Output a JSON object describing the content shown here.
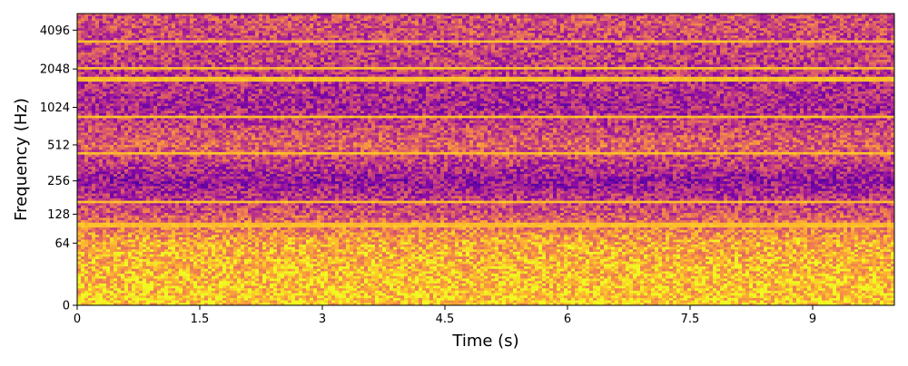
{
  "chart_data": {
    "type": "heatmap",
    "xlabel": "Time (s)",
    "ylabel": "Frequency (Hz)",
    "xlim": [
      0,
      10.0
    ],
    "x_ticks": [
      0,
      1.5,
      3,
      4.5,
      6,
      7.5,
      9
    ],
    "x_tick_labels": [
      "0",
      "1.5",
      "3",
      "4.5",
      "6",
      "7.5",
      "9"
    ],
    "y_scale": "symlog-base2",
    "ylim": [
      0,
      5500
    ],
    "y_ticks": [
      0,
      64,
      128,
      256,
      512,
      1024,
      2048,
      4096
    ],
    "y_tick_labels": [
      "0",
      "64",
      "128",
      "256",
      "512",
      "1024",
      "2048",
      "4096"
    ],
    "colormap": "plasma",
    "grid": false,
    "legend": "none",
    "tonal_lines_hz": [
      100,
      168,
      430,
      860,
      1700,
      2100,
      3300
    ],
    "noise_profile_intensity": [
      {
        "freq_hz": 0,
        "level": 0.9
      },
      {
        "freq_hz": 64,
        "level": 0.8
      },
      {
        "freq_hz": 128,
        "level": 0.55
      },
      {
        "freq_hz": 256,
        "level": 0.32
      },
      {
        "freq_hz": 512,
        "level": 0.6
      },
      {
        "freq_hz": 1024,
        "level": 0.38
      },
      {
        "freq_hz": 2048,
        "level": 0.45
      },
      {
        "freq_hz": 4096,
        "level": 0.52
      }
    ]
  }
}
